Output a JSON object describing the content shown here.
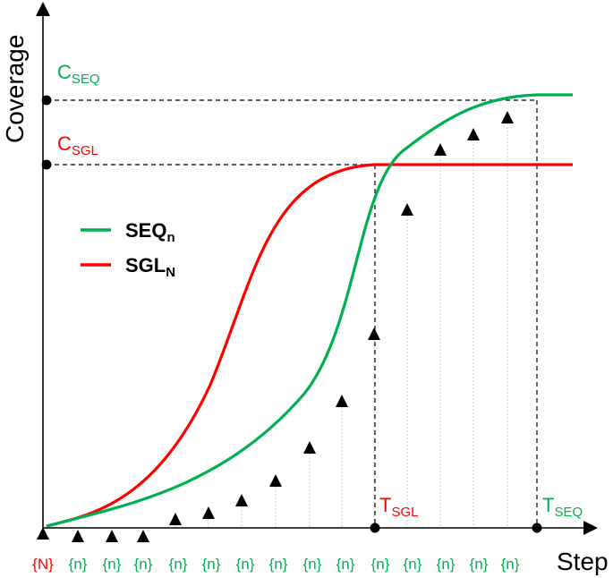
{
  "axes": {
    "y_title": "Coverage",
    "x_title": "Step"
  },
  "levels": {
    "c_seq": {
      "main": "C",
      "sub": "SEQ",
      "color": "#00b050"
    },
    "c_sgl": {
      "main": "C",
      "sub": "SGL",
      "color": "#ff0000"
    }
  },
  "times": {
    "t_sgl": {
      "main": "T",
      "sub": "SGL",
      "color": "#ff0000"
    },
    "t_seq": {
      "main": "T",
      "sub": "SEQ",
      "color": "#00b050"
    }
  },
  "legend": [
    {
      "main": "SEQ",
      "sub": "n",
      "color": "#00b050"
    },
    {
      "main": "SGL",
      "sub": "N",
      "color": "#ff0000"
    }
  ],
  "step_labels": [
    "{N}",
    "{n}",
    "{n}",
    "{n}",
    "{n}",
    "{n}",
    "{n}",
    "{n}",
    "{n}",
    "{n}",
    "{n}",
    "{n}",
    "{n}",
    "{n}",
    "{n}"
  ],
  "step_label_colors": {
    "first": "#ff0000",
    "rest": "#00b050"
  },
  "colors": {
    "axis": "#000000",
    "guide": "#000000",
    "stem": "#c8c8c8"
  }
}
